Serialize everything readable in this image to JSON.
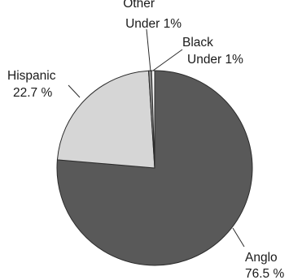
{
  "chart_data": {
    "type": "pie",
    "title": "",
    "slices": [
      {
        "name": "Anglo",
        "value_label": "76.5 %",
        "value": 76.5,
        "color": "#595959"
      },
      {
        "name": "Hispanic",
        "value_label": "22.7 %",
        "value": 22.7,
        "color": "#d6d6d6"
      },
      {
        "name": "Other",
        "value_label": "Under 1%",
        "value": 0.5,
        "color": "#8c8c8c"
      },
      {
        "name": "Black",
        "value_label": "Under 1%",
        "value": 0.5,
        "color": "#ffffff"
      }
    ],
    "start_angle_deg": 0,
    "direction": "clockwise",
    "slice_edge_color": "#2b2b2b",
    "legend": "none"
  }
}
